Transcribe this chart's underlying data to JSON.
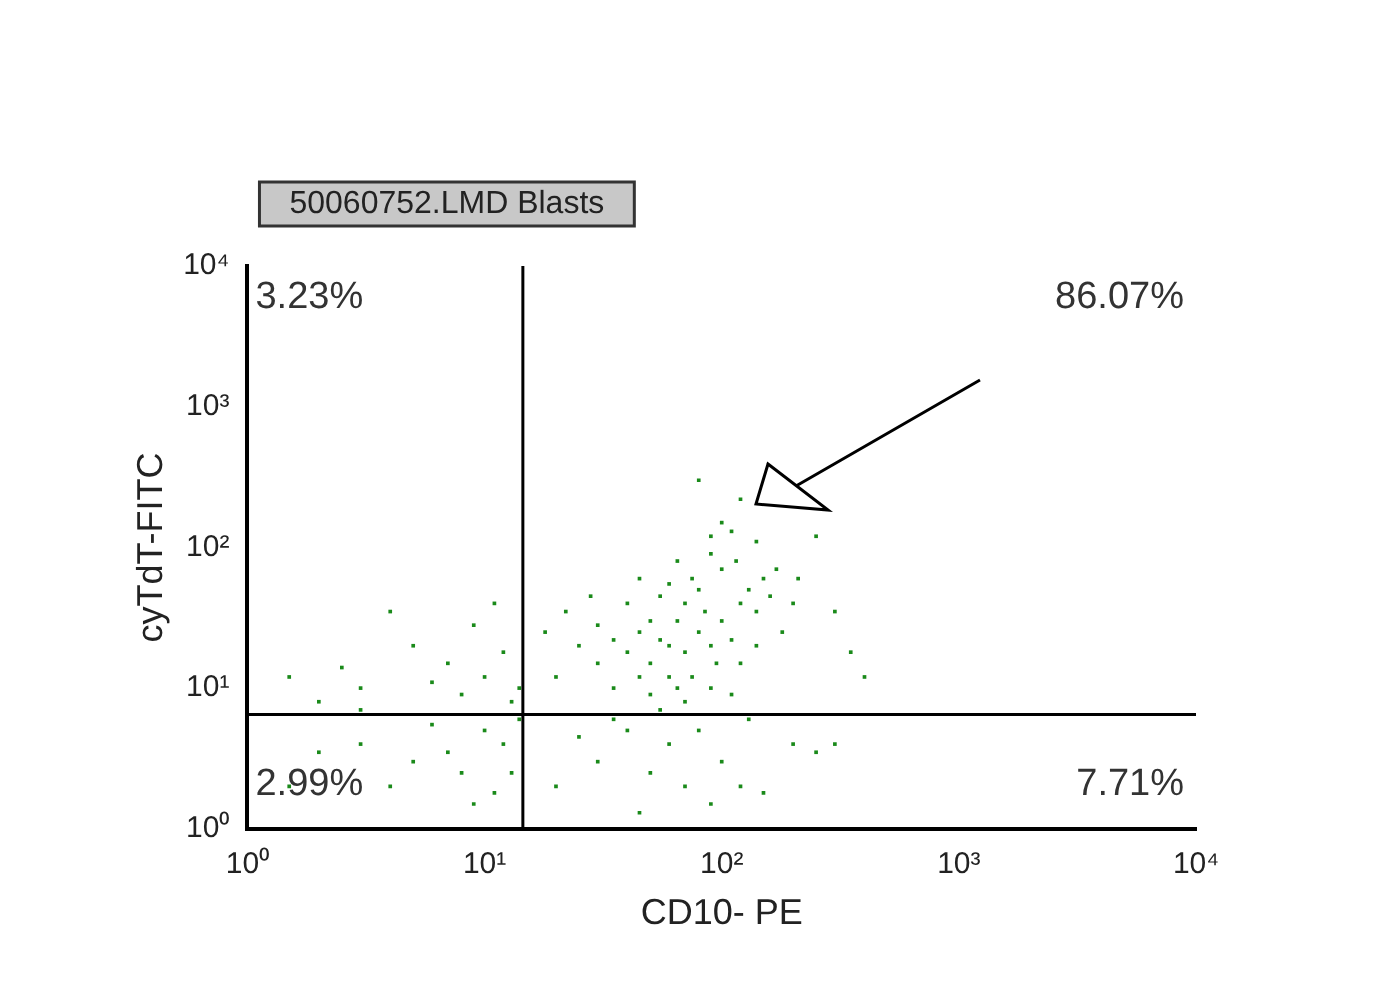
{
  "chart_data": {
    "type": "scatter",
    "title": "50060752.LMD Blasts",
    "xlabel": "CD10- PE",
    "ylabel": "cyTdT-FITC",
    "log": "xy",
    "grid": false,
    "legend": false,
    "marker": "square",
    "xlim": [
      1,
      10000
    ],
    "ylim": [
      1,
      10000
    ],
    "xticks": [
      {
        "value": 1,
        "label": "10⁰"
      },
      {
        "value": 10,
        "label": "10¹"
      },
      {
        "value": 100,
        "label": "10²"
      },
      {
        "value": 1000,
        "label": "10³"
      },
      {
        "value": 10000,
        "label": "10⁴"
      }
    ],
    "yticks": [
      {
        "value": 1,
        "label": "10⁰"
      },
      {
        "value": 10,
        "label": "10¹"
      },
      {
        "value": 100,
        "label": "10²"
      },
      {
        "value": 1000,
        "label": "10³"
      },
      {
        "value": 10000,
        "label": "10⁴"
      }
    ],
    "ref_lines": [
      {
        "axis": "x",
        "value": 14.5,
        "color": "#000000"
      },
      {
        "axis": "y",
        "value": 6.5,
        "color": "#000000"
      }
    ],
    "annotations": [
      "3.23%",
      "86.07%",
      "2.99%",
      "7.71%"
    ],
    "series": [
      {
        "color": "#1a8a1a",
        "x": [
          60,
          70,
          50,
          80,
          65,
          55,
          90,
          75,
          45,
          100,
          85,
          70,
          60,
          40,
          50,
          110,
          120,
          95,
          35,
          65,
          130,
          150,
          140,
          55,
          45,
          30,
          30,
          25,
          80,
          100,
          115,
          75,
          160,
          170,
          60,
          40,
          35,
          90,
          70,
          50,
          20,
          18,
          22,
          28,
          45,
          65,
          120,
          140,
          200,
          180,
          210,
          90,
          55,
          110,
          40,
          60,
          80,
          100,
          50,
          70,
          120,
          150,
          200,
          250,
          30,
          25,
          90,
          45,
          35,
          130,
          300,
          20,
          2,
          3,
          5,
          8,
          10,
          12,
          6,
          4,
          9,
          13,
          7,
          11,
          1.5,
          14,
          1.5,
          2,
          3,
          4,
          5,
          7,
          8,
          10,
          12,
          13,
          9,
          6,
          11,
          14,
          3,
          2.5,
          100,
          120,
          80,
          140,
          110,
          300,
          350,
          400,
          250,
          90
        ],
        "values": [
          20,
          18,
          15,
          25,
          30,
          22,
          20,
          12,
          25,
          30,
          35,
          40,
          12,
          18,
          30,
          22,
          40,
          15,
          22,
          10,
          50,
          60,
          35,
          45,
          12,
          15,
          28,
          20,
          50,
          70,
          80,
          60,
          45,
          70,
          55,
          40,
          10,
          10,
          8,
          9,
          12,
          25,
          35,
          45,
          60,
          80,
          15,
          20,
          40,
          25,
          60,
          90,
          7,
          9,
          5,
          4,
          5,
          3,
          2.5,
          2,
          2,
          1.8,
          4,
          3.5,
          3,
          4.5,
          1.5,
          1.3,
          6,
          6,
          4,
          2,
          3.5,
          4,
          3,
          2.5,
          5,
          4,
          5.5,
          2,
          1.5,
          2.5,
          3.5,
          1.8,
          2,
          6,
          12,
          8,
          10,
          35,
          20,
          15,
          9,
          12,
          18,
          8,
          28,
          11,
          40,
          10,
          7,
          14,
          150,
          220,
          300,
          110,
          130,
          35,
          18,
          12,
          120,
          120
        ]
      }
    ]
  }
}
